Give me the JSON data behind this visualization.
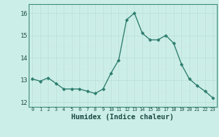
{
  "x": [
    0,
    1,
    2,
    3,
    4,
    5,
    6,
    7,
    8,
    9,
    10,
    11,
    12,
    13,
    14,
    15,
    16,
    17,
    18,
    19,
    20,
    21,
    22,
    23
  ],
  "y": [
    13.05,
    12.95,
    13.1,
    12.85,
    12.6,
    12.6,
    12.6,
    12.5,
    12.4,
    12.6,
    13.3,
    13.9,
    15.7,
    16.0,
    15.1,
    14.8,
    14.8,
    15.0,
    14.65,
    13.7,
    13.05,
    12.75,
    12.5,
    12.2
  ],
  "line_color": "#2d7d6e",
  "marker": "D",
  "marker_size": 2.5,
  "linewidth": 1.0,
  "bg_color": "#cceee8",
  "grid_color_major": "#b8ddd6",
  "grid_color_minor": "#cce8e2",
  "xlabel": "Humidex (Indice chaleur)",
  "xlabel_fontsize": 7.5,
  "ytick_labels": [
    "12",
    "13",
    "14",
    "15",
    "16"
  ],
  "ytick_values": [
    12,
    13,
    14,
    15,
    16
  ],
  "ylim": [
    11.8,
    16.4
  ],
  "xlim": [
    -0.5,
    23.5
  ],
  "xtick_values": [
    0,
    1,
    2,
    3,
    4,
    5,
    6,
    7,
    8,
    9,
    10,
    11,
    12,
    13,
    14,
    15,
    16,
    17,
    18,
    19,
    20,
    21,
    22,
    23
  ],
  "xtick_labels": [
    "0",
    "1",
    "2",
    "3",
    "4",
    "5",
    "6",
    "7",
    "8",
    "9",
    "10",
    "11",
    "12",
    "13",
    "14",
    "15",
    "16",
    "17",
    "18",
    "19",
    "20",
    "21",
    "22",
    "23"
  ]
}
